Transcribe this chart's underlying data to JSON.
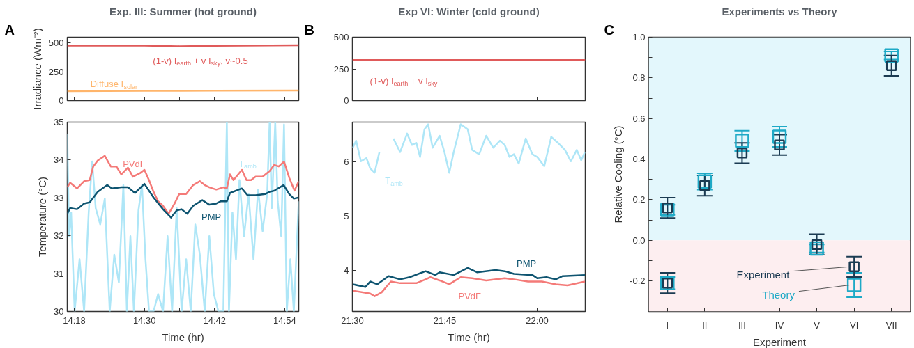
{
  "chart_data": [
    {
      "type": "line",
      "title": "Exp. III: Summer (hot ground)",
      "ylabel": "Irradiance (Wm⁻²)",
      "annotations": [
        "A"
      ],
      "xlim": [
        14.28,
        14.94
      ],
      "ylim": [
        0,
        550
      ],
      "yticks": [
        0,
        250,
        500
      ],
      "xticks": [
        {
          "value": 14.3,
          "label": null
        },
        {
          "value": 14.4,
          "label": null
        },
        {
          "value": 14.5,
          "label": null
        },
        {
          "value": 14.6,
          "label": null
        },
        {
          "value": 14.7,
          "label": null
        },
        {
          "value": 14.8,
          "label": null
        },
        {
          "value": 14.9,
          "label": null
        }
      ],
      "tick_labels": "y",
      "x": [
        14.28,
        14.5,
        14.6,
        14.7,
        14.94
      ],
      "series": [
        {
          "name": "(1-v) I$_{earth}$ + v I$_{sky}$, v~0.5",
          "color": "#e05a5a",
          "values": [
            478,
            478,
            472,
            476,
            480
          ]
        },
        {
          "name": "Diffuse I$_{solar}$",
          "color": "#ffb56b",
          "values": [
            82,
            84,
            85,
            86,
            88
          ]
        }
      ]
    },
    {
      "type": "line",
      "xlabel": "Time (hr)",
      "ylabel": "Temperature (°C)",
      "xlim": [
        14.28,
        14.94
      ],
      "ylim": [
        30,
        35
      ],
      "yticks": [
        30,
        31,
        32,
        33,
        34,
        35
      ],
      "xticks": [
        {
          "value": 14.3,
          "label": "14:18"
        },
        {
          "value": 14.4,
          "label": null
        },
        {
          "value": 14.5,
          "label": "14:30"
        },
        {
          "value": 14.6,
          "label": null
        },
        {
          "value": 14.7,
          "label": "14:42"
        },
        {
          "value": 14.8,
          "label": null
        },
        {
          "value": 14.9,
          "label": "14:54"
        }
      ],
      "series": [
        {
          "name": "T$_{amb}$",
          "color": "#aee6f7",
          "x": [
            14.28,
            14.285,
            14.291,
            14.301,
            14.315,
            14.328,
            14.341,
            14.351,
            14.361,
            14.374,
            14.387,
            14.401,
            14.414,
            14.427,
            14.44,
            14.45,
            14.46,
            14.47,
            14.483,
            14.493,
            14.503,
            14.513,
            14.526,
            14.539,
            14.553,
            14.566,
            14.579,
            14.592,
            14.606,
            14.619,
            14.632,
            14.645,
            14.658,
            14.672,
            14.685,
            14.698,
            14.711,
            14.725,
            14.735,
            14.741,
            14.751,
            14.761,
            14.771,
            14.784,
            14.797,
            14.811,
            14.824,
            14.837,
            14.85,
            14.857,
            14.863,
            14.873,
            14.88,
            14.89,
            14.898,
            14.906,
            14.916,
            14.926,
            14.94
          ],
          "values": [
            34.69,
            31.99,
            32.61,
            30.0,
            31.38,
            30.0,
            32.61,
            33.96,
            32.73,
            32.3,
            32.98,
            30.0,
            31.5,
            30.77,
            33.34,
            30.0,
            31.99,
            30.0,
            32.67,
            33.34,
            31.38,
            30.0,
            30.0,
            30.46,
            30.0,
            31.99,
            30.0,
            32.73,
            30.0,
            31.38,
            30.0,
            32.3,
            31.5,
            30.0,
            31.99,
            30.46,
            30.0,
            30.0,
            35.0,
            30.0,
            32.61,
            31.38,
            33.47,
            31.99,
            33.1,
            31.38,
            33.22,
            32.12,
            33.1,
            35.0,
            32.73,
            35.0,
            32.91,
            31.99,
            34.94,
            30.0,
            31.38,
            30.0,
            32.91
          ]
        },
        {
          "name": "PVdF",
          "color": "#f47a78",
          "x": [
            14.28,
            14.288,
            14.308,
            14.328,
            14.344,
            14.354,
            14.367,
            14.387,
            14.404,
            14.42,
            14.434,
            14.453,
            14.467,
            14.487,
            14.5,
            14.513,
            14.526,
            14.539,
            14.553,
            14.569,
            14.586,
            14.599,
            14.619,
            14.639,
            14.658,
            14.672,
            14.685,
            14.705,
            14.725,
            14.735,
            14.744,
            14.754,
            14.778,
            14.791,
            14.804,
            14.817,
            14.837,
            14.857,
            14.87,
            14.883,
            14.898,
            14.913,
            14.928,
            14.94
          ],
          "values": [
            33.28,
            33.4,
            33.25,
            33.44,
            33.47,
            33.83,
            33.99,
            34.11,
            33.83,
            33.83,
            33.62,
            33.8,
            33.56,
            33.65,
            33.74,
            33.47,
            33.16,
            32.91,
            32.79,
            32.58,
            32.85,
            33.1,
            33.1,
            33.34,
            33.44,
            33.34,
            33.28,
            33.22,
            33.28,
            33.25,
            33.62,
            33.47,
            33.74,
            33.47,
            33.47,
            33.56,
            33.56,
            33.71,
            33.87,
            33.83,
            33.96,
            33.53,
            33.19,
            33.44
          ]
        },
        {
          "name": "PMP",
          "color": "#0e5470",
          "x": [
            14.28,
            14.288,
            14.308,
            14.328,
            14.344,
            14.367,
            14.394,
            14.407,
            14.434,
            14.453,
            14.473,
            14.5,
            14.526,
            14.553,
            14.576,
            14.592,
            14.606,
            14.622,
            14.639,
            14.665,
            14.685,
            14.705,
            14.718,
            14.735,
            14.744,
            14.778,
            14.794,
            14.817,
            14.844,
            14.857,
            14.87,
            14.897,
            14.913,
            14.926,
            14.94
          ],
          "values": [
            32.58,
            32.73,
            32.7,
            32.85,
            32.88,
            33.16,
            33.34,
            33.25,
            33.28,
            33.28,
            33.13,
            33.37,
            33.01,
            32.7,
            32.48,
            32.67,
            32.7,
            32.58,
            32.79,
            32.94,
            32.82,
            32.85,
            32.91,
            32.91,
            33.13,
            33.25,
            33.07,
            33.07,
            33.1,
            33.16,
            33.19,
            33.34,
            33.1,
            32.98,
            33.01
          ]
        }
      ]
    },
    {
      "type": "line",
      "title": "Exp VI: Winter (cold ground)",
      "annotations": [
        "B"
      ],
      "xlim": [
        21.5,
        22.13
      ],
      "ylim": [
        0,
        500
      ],
      "yticks": [
        0,
        250,
        500
      ],
      "xticks": [
        {
          "value": 21.5,
          "label": null
        },
        {
          "value": 21.75,
          "label": null
        },
        {
          "value": 22.0,
          "label": null
        }
      ],
      "tick_labels": "y",
      "x": [
        21.5,
        21.75,
        22.0,
        22.13
      ],
      "series": [
        {
          "name": "(1-v) I$_{earth}$ + v I$_{sky}$",
          "color": "#e05a5a",
          "values": [
            320,
            320,
            320,
            320
          ]
        }
      ]
    },
    {
      "type": "line",
      "xlabel": "Time (hr)",
      "xlim": [
        21.5,
        22.13
      ],
      "ylim": [
        3.25,
        6.73
      ],
      "yticks": [
        4,
        5,
        6
      ],
      "xticks": [
        {
          "value": 21.5,
          "label": "21:30"
        },
        {
          "value": 21.75,
          "label": "21:45"
        },
        {
          "value": 22.0,
          "label": "22:00"
        }
      ],
      "series": [
        {
          "name": "T$_{amb}$",
          "color": "#aee6f7",
          "x": [
            21.501,
            21.51,
            21.523,
            21.538,
            21.548,
            21.56,
            21.573,
            21.589,
            21.604,
            21.611,
            21.629,
            21.648,
            21.661,
            21.673,
            21.683,
            21.695,
            21.705,
            21.717,
            21.736,
            21.749,
            21.762,
            21.774,
            21.793,
            21.812,
            21.824,
            21.843,
            21.862,
            21.881,
            21.899,
            21.912,
            21.925,
            21.937,
            21.95,
            21.969,
            21.987,
            22.0,
            22.019,
            22.038,
            22.056,
            22.075,
            22.091,
            22.107,
            22.119,
            22.129
          ],
          "values": [
            6.26,
            6.39,
            6.01,
            6.07,
            5.88,
            5.8,
            6.18,
            null,
            null,
            6.43,
            6.18,
            6.52,
            6.31,
            6.35,
            6.09,
            6.6,
            6.69,
            6.26,
            6.48,
            6.18,
            5.8,
            6.18,
            6.69,
            6.6,
            6.22,
            6.14,
            6.48,
            6.26,
            6.39,
            6.31,
            6.09,
            6.14,
            5.97,
            6.43,
            6.14,
            6.09,
            5.92,
            6.46,
            6.35,
            6.22,
            6.01,
            6.22,
            6.03,
            6.18
          ]
        },
        {
          "name": "PMP",
          "color": "#0e5470",
          "x": [
            21.501,
            21.535,
            21.548,
            21.567,
            21.598,
            21.629,
            21.655,
            21.698,
            21.724,
            21.736,
            21.774,
            21.812,
            21.837,
            21.887,
            21.912,
            21.937,
            21.987,
            22.0,
            22.025,
            22.05,
            22.069,
            22.129
          ],
          "values": [
            3.75,
            3.7,
            3.8,
            3.75,
            3.9,
            3.84,
            3.88,
            3.99,
            3.92,
            3.97,
            3.92,
            4.05,
            3.97,
            4.01,
            3.99,
            3.94,
            3.92,
            3.86,
            3.88,
            3.84,
            3.9,
            3.92
          ]
        },
        {
          "name": "PVdF",
          "color": "#f47a78",
          "x": [
            21.501,
            21.548,
            21.56,
            21.579,
            21.604,
            21.629,
            21.673,
            21.698,
            21.711,
            21.736,
            21.762,
            21.793,
            21.824,
            21.862,
            21.912,
            21.937,
            21.975,
            22.013,
            22.05,
            22.082,
            22.129
          ],
          "values": [
            3.63,
            3.58,
            3.53,
            3.6,
            3.8,
            3.77,
            3.77,
            3.84,
            3.88,
            3.82,
            3.75,
            3.88,
            3.86,
            3.82,
            3.86,
            3.84,
            3.8,
            3.8,
            3.75,
            3.73,
            3.8
          ]
        }
      ]
    },
    {
      "type": "scatter",
      "title": "Experiments vs Theory",
      "xlabel": "Experiment",
      "ylabel": "Relative Cooling (°C)",
      "annotations": [
        "C"
      ],
      "marker": "square",
      "categories": [
        "I",
        "II",
        "III",
        "IV",
        "V",
        "VI",
        "VII"
      ],
      "ylim": [
        -0.35,
        1.0
      ],
      "yticks": [
        {
          "value": -0.3,
          "label": null
        },
        -0.2,
        {
          "value": -0.1,
          "label": null
        },
        {
          "value": 0,
          "label": "0.0"
        },
        {
          "value": 0.1,
          "label": null
        },
        0.2,
        {
          "value": 0.3,
          "label": null
        },
        0.4,
        {
          "value": 0.5,
          "label": null
        },
        0.6,
        {
          "value": 0.7,
          "label": null
        },
        0.8,
        {
          "value": 0.9,
          "label": null
        },
        {
          "value": 1.0,
          "label": "1.0"
        }
      ],
      "bands": [
        {
          "axis": "y",
          "from": 0,
          "to": 1.0,
          "label": null,
          "color": "#e3f7fc"
        },
        {
          "axis": "y",
          "from": -0.35,
          "to": 0,
          "label": null,
          "color": "#fdeef0"
        }
      ],
      "series": [
        {
          "name": "Theory",
          "color": "#1ea9c6",
          "x": [
            "I",
            "I",
            "II",
            "III",
            "IV",
            "V",
            "VI",
            "VII"
          ],
          "values": [
            0.15,
            -0.21,
            0.29,
            0.49,
            0.51,
            -0.04,
            -0.22,
            0.91
          ],
          "errors": [
            0.025,
            0.03,
            0.04,
            0.05,
            0.05,
            0.02,
            0.06,
            0.02
          ]
        },
        {
          "name": "Experiment",
          "color": "#1b3b52",
          "x": [
            "I",
            "I",
            "II",
            "III",
            "IV",
            "V",
            "VI",
            "VII"
          ],
          "values": [
            0.16,
            -0.21,
            0.27,
            0.43,
            0.47,
            -0.02,
            -0.13,
            0.86
          ],
          "errors": [
            0.05,
            0.05,
            0.05,
            0.05,
            0.05,
            0.05,
            0.05,
            0.05
          ]
        }
      ]
    }
  ]
}
